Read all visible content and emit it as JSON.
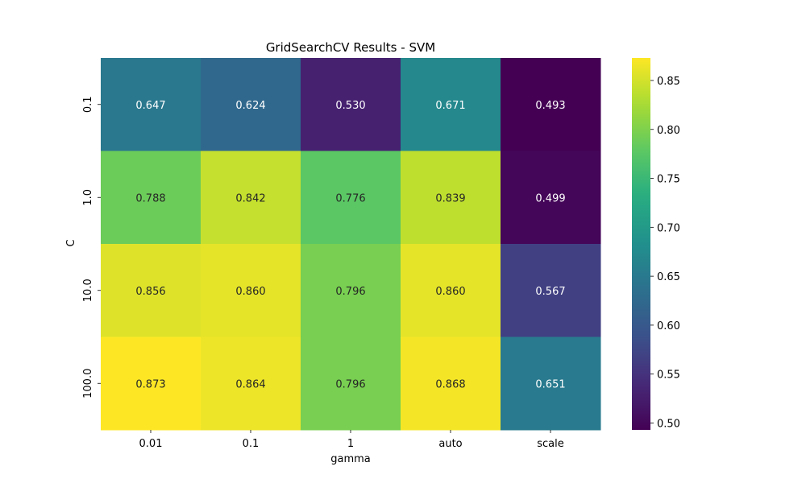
{
  "chart_data": {
    "type": "heatmap",
    "title": "GridSearchCV Results - SVM",
    "xlabel": "gamma",
    "ylabel": "C",
    "x_categories": [
      "0.01",
      "0.1",
      "1",
      "auto",
      "scale"
    ],
    "y_categories": [
      "0.1",
      "1.0",
      "10.0",
      "100.0"
    ],
    "values": [
      [
        0.647,
        0.624,
        0.53,
        0.671,
        0.493
      ],
      [
        0.788,
        0.842,
        0.776,
        0.839,
        0.499
      ],
      [
        0.856,
        0.86,
        0.796,
        0.86,
        0.567
      ],
      [
        0.873,
        0.864,
        0.796,
        0.868,
        0.651
      ]
    ],
    "value_format": "0.000",
    "colormap": "viridis",
    "vmin": 0.493,
    "vmax": 0.873,
    "colorbar_ticks": [
      "0.50",
      "0.55",
      "0.60",
      "0.65",
      "0.70",
      "0.75",
      "0.80",
      "0.85"
    ],
    "grid": false,
    "legend": "colorbar-right"
  }
}
